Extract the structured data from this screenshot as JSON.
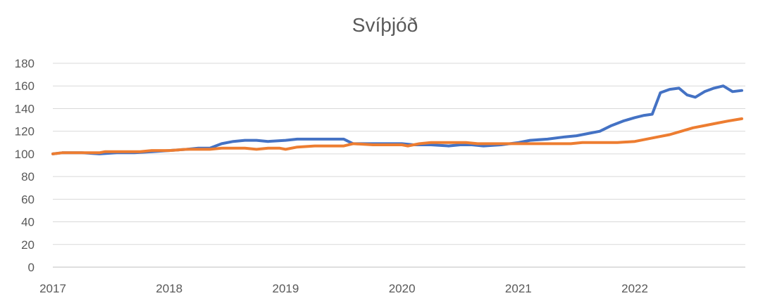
{
  "chart_data": {
    "type": "line",
    "title": "Svíþjóð",
    "xlabel": "",
    "ylabel": "",
    "ylim": [
      0,
      180
    ],
    "yticks": [
      0,
      20,
      40,
      60,
      80,
      100,
      120,
      140,
      160,
      180
    ],
    "xlim": [
      2017,
      2022.95
    ],
    "xticks": [
      {
        "value": 2017,
        "label": "2017"
      },
      {
        "value": 2018,
        "label": "2018"
      },
      {
        "value": 2019,
        "label": "2019"
      },
      {
        "value": 2020,
        "label": "2020"
      },
      {
        "value": 2021,
        "label": "2021"
      },
      {
        "value": 2022,
        "label": "2022"
      }
    ],
    "grid": true,
    "legend": "none",
    "series": [
      {
        "color": "#4472C4",
        "points": [
          [
            2017.0,
            100
          ],
          [
            2017.08,
            101
          ],
          [
            2017.25,
            101
          ],
          [
            2017.4,
            100
          ],
          [
            2017.55,
            101
          ],
          [
            2017.7,
            101
          ],
          [
            2017.85,
            102
          ],
          [
            2018.0,
            103
          ],
          [
            2018.15,
            104
          ],
          [
            2018.25,
            105
          ],
          [
            2018.35,
            105
          ],
          [
            2018.45,
            109
          ],
          [
            2018.55,
            111
          ],
          [
            2018.65,
            112
          ],
          [
            2018.75,
            112
          ],
          [
            2018.85,
            111
          ],
          [
            2019.0,
            112
          ],
          [
            2019.1,
            113
          ],
          [
            2019.25,
            113
          ],
          [
            2019.4,
            113
          ],
          [
            2019.5,
            113
          ],
          [
            2019.58,
            109
          ],
          [
            2019.75,
            109
          ],
          [
            2020.0,
            109
          ],
          [
            2020.1,
            108
          ],
          [
            2020.25,
            108
          ],
          [
            2020.4,
            107
          ],
          [
            2020.5,
            108
          ],
          [
            2020.6,
            108
          ],
          [
            2020.7,
            107
          ],
          [
            2020.85,
            108
          ],
          [
            2021.0,
            110
          ],
          [
            2021.1,
            112
          ],
          [
            2021.25,
            113
          ],
          [
            2021.4,
            115
          ],
          [
            2021.5,
            116
          ],
          [
            2021.6,
            118
          ],
          [
            2021.7,
            120
          ],
          [
            2021.8,
            125
          ],
          [
            2021.9,
            129
          ],
          [
            2022.0,
            132
          ],
          [
            2022.08,
            134
          ],
          [
            2022.15,
            135
          ],
          [
            2022.22,
            154
          ],
          [
            2022.3,
            157
          ],
          [
            2022.38,
            158
          ],
          [
            2022.45,
            152
          ],
          [
            2022.52,
            150
          ],
          [
            2022.6,
            155
          ],
          [
            2022.68,
            158
          ],
          [
            2022.76,
            160
          ],
          [
            2022.84,
            155
          ],
          [
            2022.92,
            156
          ]
        ]
      },
      {
        "color": "#ED7D31",
        "points": [
          [
            2017.0,
            100
          ],
          [
            2017.08,
            101
          ],
          [
            2017.25,
            101
          ],
          [
            2017.4,
            101
          ],
          [
            2017.45,
            102
          ],
          [
            2017.6,
            102
          ],
          [
            2017.75,
            102
          ],
          [
            2017.85,
            103
          ],
          [
            2018.0,
            103
          ],
          [
            2018.15,
            104
          ],
          [
            2018.25,
            104
          ],
          [
            2018.35,
            104
          ],
          [
            2018.45,
            105
          ],
          [
            2018.55,
            105
          ],
          [
            2018.65,
            105
          ],
          [
            2018.75,
            104
          ],
          [
            2018.85,
            105
          ],
          [
            2018.95,
            105
          ],
          [
            2019.0,
            104
          ],
          [
            2019.1,
            106
          ],
          [
            2019.25,
            107
          ],
          [
            2019.4,
            107
          ],
          [
            2019.5,
            107
          ],
          [
            2019.58,
            109
          ],
          [
            2019.75,
            108
          ],
          [
            2020.0,
            108
          ],
          [
            2020.05,
            107
          ],
          [
            2020.15,
            109
          ],
          [
            2020.25,
            110
          ],
          [
            2020.35,
            110
          ],
          [
            2020.45,
            110
          ],
          [
            2020.55,
            110
          ],
          [
            2020.65,
            109
          ],
          [
            2020.75,
            109
          ],
          [
            2020.85,
            109
          ],
          [
            2021.0,
            109
          ],
          [
            2021.15,
            109
          ],
          [
            2021.3,
            109
          ],
          [
            2021.45,
            109
          ],
          [
            2021.55,
            110
          ],
          [
            2021.65,
            110
          ],
          [
            2021.75,
            110
          ],
          [
            2021.85,
            110
          ],
          [
            2022.0,
            111
          ],
          [
            2022.1,
            113
          ],
          [
            2022.2,
            115
          ],
          [
            2022.3,
            117
          ],
          [
            2022.4,
            120
          ],
          [
            2022.5,
            123
          ],
          [
            2022.6,
            125
          ],
          [
            2022.7,
            127
          ],
          [
            2022.8,
            129
          ],
          [
            2022.92,
            131
          ]
        ]
      }
    ]
  }
}
